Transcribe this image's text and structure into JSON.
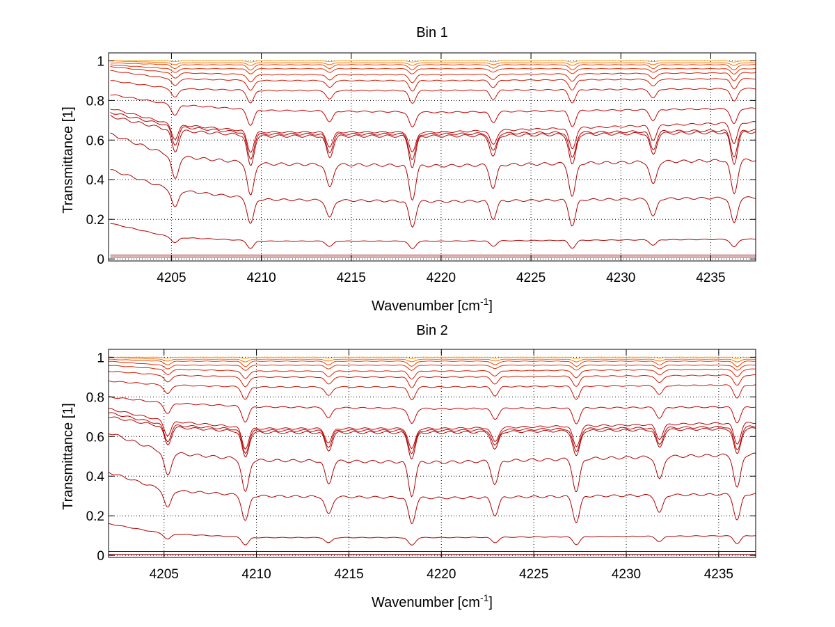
{
  "figure": {
    "background": "#ffffff"
  },
  "chart_data": [
    {
      "type": "line",
      "title": "Bin 1",
      "xlabel": "Wavenumber [cm",
      "xlabel_sup": "-1",
      "xlabel_suffix": "]",
      "ylabel": "Transmittance [1]",
      "xlim": [
        4201.5,
        4237.5
      ],
      "ylim": [
        -0.01,
        1.04
      ],
      "xticks": [
        4205,
        4210,
        4215,
        4220,
        4225,
        4230,
        4235
      ],
      "xtick_labels": [
        "4205",
        "4210",
        "4215",
        "4220",
        "4225",
        "4230",
        "4235"
      ],
      "yticks": [
        0,
        0.2,
        0.4,
        0.6,
        0.8,
        1
      ],
      "ytick_labels": [
        "0",
        "0.2",
        "0.4",
        "0.6",
        "0.8",
        "1"
      ],
      "grid": "dotted",
      "lines": [
        {
          "x": [
            4201.6,
            4205,
            4237.5
          ],
          "y": [
            0.01,
            0.01,
            0.01
          ],
          "color": "#8b0000"
        },
        {
          "x": [
            4201.6,
            4237.5
          ],
          "y": [
            0.02,
            0.02
          ],
          "color": "#8b0000"
        },
        {
          "x": [
            4201.6,
            4205,
            4210,
            4220,
            4237.5
          ],
          "y": [
            0.18,
            0.11,
            0.09,
            0.09,
            0.1
          ],
          "dip": 0.03,
          "color": "#b00000"
        },
        {
          "x": [
            4201.6,
            4205,
            4210,
            4220,
            4237.5
          ],
          "y": [
            0.45,
            0.35,
            0.3,
            0.29,
            0.31
          ],
          "dip": 0.1,
          "color": "#b00000"
        },
        {
          "x": [
            4201.6,
            4205,
            4210,
            4220,
            4237.5
          ],
          "y": [
            0.63,
            0.52,
            0.48,
            0.47,
            0.5
          ],
          "dip": 0.13,
          "color": "#b00000"
        },
        {
          "x": [
            4201.6,
            4205,
            4210,
            4220,
            4237.5
          ],
          "y": [
            0.72,
            0.65,
            0.62,
            0.62,
            0.64
          ],
          "dip": 0.12,
          "color": "#b00000"
        },
        {
          "x": [
            4201.6,
            4205,
            4210,
            4220,
            4237.5
          ],
          "y": [
            0.74,
            0.67,
            0.63,
            0.63,
            0.65
          ],
          "dip": 0.1,
          "color": "#b00000"
        },
        {
          "x": [
            4201.6,
            4205,
            4210,
            4220,
            4237.5
          ],
          "y": [
            0.76,
            0.68,
            0.64,
            0.64,
            0.69
          ],
          "dip": 0.08,
          "color": "#c00000"
        },
        {
          "x": [
            4201.6,
            4205,
            4210,
            4220,
            4237.5
          ],
          "y": [
            0.83,
            0.78,
            0.75,
            0.74,
            0.76
          ],
          "dip": 0.06,
          "color": "#c40000"
        },
        {
          "x": [
            4201.6,
            4205,
            4210,
            4220,
            4237.5
          ],
          "y": [
            0.9,
            0.86,
            0.85,
            0.85,
            0.86
          ],
          "dip": 0.05,
          "color": "#c81000"
        },
        {
          "x": [
            4201.6,
            4205,
            4210,
            4220,
            4237.5
          ],
          "y": [
            0.95,
            0.91,
            0.9,
            0.9,
            0.91
          ],
          "dip": 0.04,
          "color": "#d01800"
        },
        {
          "x": [
            4201.6,
            4205,
            4210,
            4220,
            4237.5
          ],
          "y": [
            0.97,
            0.94,
            0.93,
            0.93,
            0.94
          ],
          "dip": 0.03,
          "color": "#d82000"
        },
        {
          "x": [
            4201.6,
            4205,
            4210,
            4220,
            4237.5
          ],
          "y": [
            0.98,
            0.96,
            0.96,
            0.96,
            0.96
          ],
          "dip": 0.02,
          "color": "#e03000"
        },
        {
          "x": [
            4201.6,
            4205,
            4210,
            4220,
            4237.5
          ],
          "y": [
            0.99,
            0.98,
            0.98,
            0.98,
            0.98
          ],
          "dip": 0.02,
          "color": "#f04000"
        },
        {
          "x": [
            4201.6,
            4205,
            4210,
            4220,
            4237.5
          ],
          "y": [
            1.0,
            0.99,
            0.99,
            0.99,
            0.99
          ],
          "dip": 0.01,
          "color": "#ff6a00"
        },
        {
          "x": [
            4201.6,
            4205,
            4210,
            4220,
            4237.5
          ],
          "y": [
            1.0,
            1.0,
            1.0,
            1.0,
            1.0
          ],
          "dip": 0.005,
          "color": "#ffa000"
        }
      ],
      "dip_positions": [
        4205.2,
        4209.4,
        4213.8,
        4218.4,
        4222.9,
        4227.3,
        4231.8,
        4236.3
      ]
    },
    {
      "type": "line",
      "title": "Bin 2",
      "xlabel": "Wavenumber [cm",
      "xlabel_sup": "-1",
      "xlabel_suffix": "]",
      "ylabel": "Transmittance [1]",
      "xlim": [
        4202,
        4237
      ],
      "ylim": [
        -0.01,
        1.04
      ],
      "xticks": [
        4205,
        4210,
        4215,
        4220,
        4225,
        4230,
        4235
      ],
      "xtick_labels": [
        "4205",
        "4210",
        "4215",
        "4220",
        "4225",
        "4230",
        "4235"
      ],
      "yticks": [
        0,
        0.2,
        0.4,
        0.6,
        0.8,
        1
      ],
      "ytick_labels": [
        "0",
        "0.2",
        "0.4",
        "0.6",
        "0.8",
        "1"
      ],
      "grid": "dotted",
      "lines": [
        {
          "x": [
            4202,
            4205,
            4237
          ],
          "y": [
            0.005,
            0.005,
            0.005
          ],
          "color": "#8b0000"
        },
        {
          "x": [
            4202,
            4237
          ],
          "y": [
            0.02,
            0.02
          ],
          "color": "#8b0000"
        },
        {
          "x": [
            4202,
            4205,
            4210,
            4220,
            4237
          ],
          "y": [
            0.16,
            0.11,
            0.09,
            0.09,
            0.1
          ],
          "dip": 0.03,
          "color": "#b00000"
        },
        {
          "x": [
            4202,
            4205,
            4210,
            4220,
            4237
          ],
          "y": [
            0.42,
            0.33,
            0.3,
            0.29,
            0.31
          ],
          "dip": 0.1,
          "color": "#b00000"
        },
        {
          "x": [
            4202,
            4205,
            4210,
            4220,
            4237
          ],
          "y": [
            0.62,
            0.52,
            0.48,
            0.47,
            0.51
          ],
          "dip": 0.13,
          "color": "#b00000"
        },
        {
          "x": [
            4202,
            4205,
            4210,
            4220,
            4237
          ],
          "y": [
            0.7,
            0.65,
            0.62,
            0.62,
            0.64
          ],
          "dip": 0.1,
          "color": "#b00000"
        },
        {
          "x": [
            4202,
            4205,
            4210,
            4220,
            4237
          ],
          "y": [
            0.72,
            0.66,
            0.63,
            0.63,
            0.65
          ],
          "dip": 0.09,
          "color": "#b00000"
        },
        {
          "x": [
            4202,
            4205,
            4210,
            4220,
            4237
          ],
          "y": [
            0.74,
            0.68,
            0.64,
            0.64,
            0.67
          ],
          "dip": 0.08,
          "color": "#c00000"
        },
        {
          "x": [
            4202,
            4205,
            4210,
            4220,
            4237
          ],
          "y": [
            0.8,
            0.77,
            0.75,
            0.74,
            0.75
          ],
          "dip": 0.06,
          "color": "#c40000"
        },
        {
          "x": [
            4202,
            4205,
            4210,
            4220,
            4237
          ],
          "y": [
            0.88,
            0.86,
            0.85,
            0.85,
            0.86
          ],
          "dip": 0.05,
          "color": "#c81000"
        },
        {
          "x": [
            4202,
            4205,
            4210,
            4220,
            4237
          ],
          "y": [
            0.93,
            0.91,
            0.9,
            0.9,
            0.91
          ],
          "dip": 0.04,
          "color": "#d01800"
        },
        {
          "x": [
            4202,
            4205,
            4210,
            4220,
            4237
          ],
          "y": [
            0.96,
            0.94,
            0.93,
            0.93,
            0.94
          ],
          "dip": 0.03,
          "color": "#d82000"
        },
        {
          "x": [
            4202,
            4205,
            4210,
            4220,
            4237
          ],
          "y": [
            0.98,
            0.96,
            0.96,
            0.96,
            0.96
          ],
          "dip": 0.02,
          "color": "#e03000"
        },
        {
          "x": [
            4202,
            4205,
            4210,
            4220,
            4237
          ],
          "y": [
            0.99,
            0.98,
            0.98,
            0.98,
            0.98
          ],
          "dip": 0.02,
          "color": "#f04000"
        },
        {
          "x": [
            4202,
            4205,
            4210,
            4220,
            4237
          ],
          "y": [
            1.0,
            0.99,
            0.99,
            0.99,
            0.99
          ],
          "dip": 0.01,
          "color": "#ff6a00"
        },
        {
          "x": [
            4202,
            4205,
            4210,
            4220,
            4237
          ],
          "y": [
            1.0,
            1.0,
            1.0,
            1.0,
            1.0
          ],
          "dip": 0.005,
          "color": "#ffa000"
        }
      ],
      "dip_positions": [
        4205.2,
        4209.4,
        4213.9,
        4218.4,
        4222.9,
        4227.3,
        4231.8,
        4236.0
      ]
    }
  ]
}
